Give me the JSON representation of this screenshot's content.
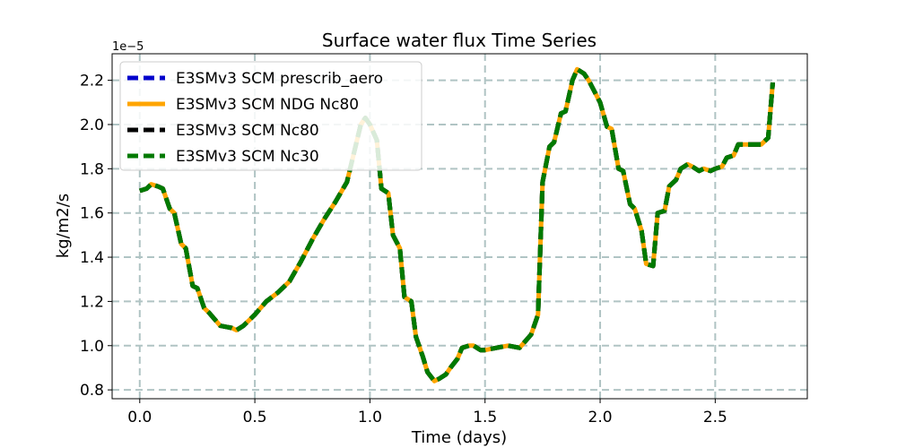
{
  "chart_data": {
    "type": "line",
    "title": "Surface water flux Time Series",
    "xlabel": "Time (days)",
    "ylabel": "kg/m2/s",
    "offset_label": "1e−5",
    "xlim": [
      -0.12,
      2.9
    ],
    "ylim": [
      0.76,
      2.32
    ],
    "xticks": [
      0.0,
      0.5,
      1.0,
      1.5,
      2.0,
      2.5
    ],
    "xtick_labels": [
      "0.0",
      "0.5",
      "1.0",
      "1.5",
      "2.0",
      "2.5"
    ],
    "yticks": [
      0.8,
      1.0,
      1.2,
      1.4,
      1.6,
      1.8,
      2.0,
      2.2
    ],
    "ytick_labels": [
      "0.8",
      "1.0",
      "1.2",
      "1.4",
      "1.6",
      "1.8",
      "2.0",
      "2.2"
    ],
    "grid": true,
    "legend_position": "top-left",
    "series": [
      {
        "name": "E3SMv3 SCM prescrib_aero",
        "color": "#0000cc",
        "style": "dashed",
        "data_ref": "shared"
      },
      {
        "name": "E3SMv3 SCM NDG Nc80",
        "color": "#ffa500",
        "style": "solid",
        "data_ref": "shared"
      },
      {
        "name": "E3SMv3 SCM Nc80",
        "color": "#000000",
        "style": "dashed",
        "data_ref": "shared"
      },
      {
        "name": "E3SMv3 SCM Nc30",
        "color": "#007a00",
        "style": "dashed",
        "data_ref": "shared"
      }
    ],
    "x": [
      0.0,
      0.03,
      0.05,
      0.08,
      0.1,
      0.13,
      0.15,
      0.18,
      0.2,
      0.23,
      0.25,
      0.28,
      0.3,
      0.35,
      0.4,
      0.42,
      0.45,
      0.48,
      0.5,
      0.55,
      0.6,
      0.65,
      0.7,
      0.75,
      0.8,
      0.85,
      0.9,
      0.93,
      0.96,
      0.98,
      1.0,
      1.03,
      1.05,
      1.08,
      1.1,
      1.13,
      1.15,
      1.18,
      1.2,
      1.23,
      1.25,
      1.28,
      1.3,
      1.33,
      1.35,
      1.38,
      1.4,
      1.43,
      1.45,
      1.48,
      1.5,
      1.55,
      1.6,
      1.65,
      1.7,
      1.73,
      1.75,
      1.78,
      1.8,
      1.83,
      1.85,
      1.88,
      1.9,
      1.93,
      1.95,
      1.98,
      2.0,
      2.03,
      2.05,
      2.08,
      2.1,
      2.13,
      2.15,
      2.18,
      2.2,
      2.23,
      2.25,
      2.28,
      2.3,
      2.33,
      2.35,
      2.38,
      2.4,
      2.43,
      2.45,
      2.48,
      2.5,
      2.53,
      2.55,
      2.58,
      2.6,
      2.65,
      2.7,
      2.73,
      2.75
    ],
    "y": [
      1.7,
      1.71,
      1.73,
      1.72,
      1.71,
      1.62,
      1.6,
      1.46,
      1.44,
      1.27,
      1.26,
      1.17,
      1.15,
      1.09,
      1.08,
      1.07,
      1.09,
      1.12,
      1.14,
      1.2,
      1.24,
      1.29,
      1.38,
      1.48,
      1.57,
      1.65,
      1.74,
      1.87,
      2.0,
      2.03,
      2.0,
      1.93,
      1.71,
      1.69,
      1.5,
      1.44,
      1.22,
      1.2,
      1.04,
      0.95,
      0.88,
      0.84,
      0.85,
      0.87,
      0.9,
      0.94,
      0.99,
      1.0,
      1.0,
      0.98,
      0.98,
      0.99,
      1.0,
      0.99,
      1.05,
      1.14,
      1.74,
      1.9,
      1.92,
      2.05,
      2.06,
      2.2,
      2.25,
      2.23,
      2.2,
      2.14,
      2.1,
      1.99,
      1.98,
      1.8,
      1.79,
      1.64,
      1.62,
      1.52,
      1.37,
      1.36,
      1.6,
      1.61,
      1.72,
      1.75,
      1.8,
      1.82,
      1.81,
      1.79,
      1.8,
      1.79,
      1.8,
      1.81,
      1.85,
      1.86,
      1.91,
      1.91,
      1.91,
      1.94,
      2.19
    ]
  }
}
